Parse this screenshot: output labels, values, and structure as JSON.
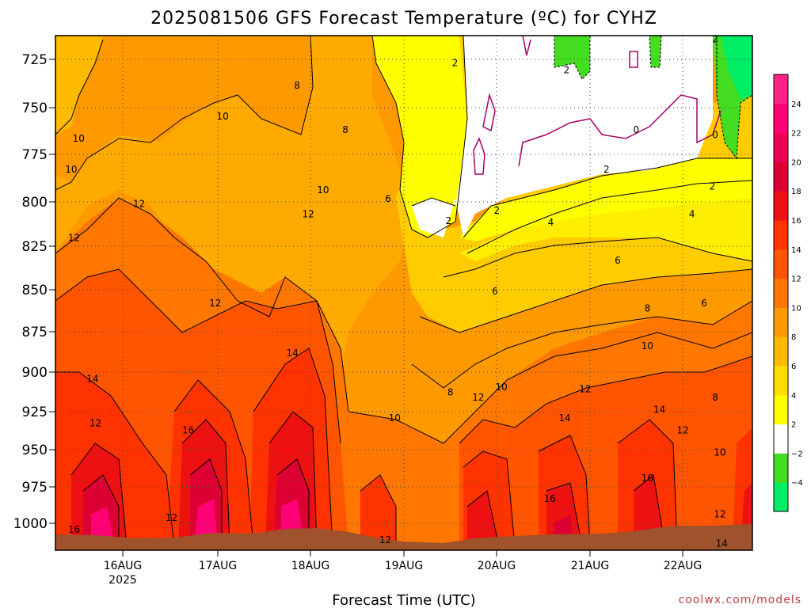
{
  "title": "2025081506 GFS Forecast Temperature (ºC) for CYHZ",
  "xlabel": "Forecast Time (UTC)",
  "credit": "coolwx.com/models",
  "chart_data": {
    "type": "heatmap",
    "title": "2025081506 GFS Forecast Temperature (ºC) for CYHZ",
    "xlabel": "Forecast Time (UTC)",
    "ylabel": "",
    "y_axis": {
      "ticks": [
        725,
        750,
        775,
        800,
        825,
        850,
        875,
        900,
        925,
        950,
        975,
        1000
      ],
      "inverted": true,
      "range": [
        712,
        1012
      ]
    },
    "x_axis": {
      "ticks": [
        "16AUG",
        "17AUG",
        "18AUG",
        "19AUG",
        "20AUG",
        "21AUG",
        "22AUG"
      ],
      "sub_label": "2025",
      "range_days": [
        15.25,
        22.75
      ],
      "day_positions": [
        16,
        17,
        18,
        19,
        20,
        21,
        22
      ]
    },
    "grid": true,
    "colorbar": {
      "ticks": [
        "24",
        "22",
        "20",
        "18",
        "16",
        "14",
        "12",
        "10",
        "8",
        "6",
        "4",
        "2",
        "−2",
        "−4"
      ],
      "levels": [
        -6,
        -4,
        -2,
        2,
        4,
        6,
        8,
        10,
        12,
        14,
        16,
        18,
        20,
        22,
        24,
        26
      ],
      "colors": [
        "#00ee66",
        "#44dd22",
        "#ffffff",
        "#ffff00",
        "#ffdd00",
        "#ffbb00",
        "#ff9900",
        "#ff7700",
        "#ff5500",
        "#ff3300",
        "#ee1111",
        "#dd0033",
        "#ee0055",
        "#ff0077",
        "#ff2288"
      ]
    },
    "contour_labels": [
      {
        "text": "2",
        "x_day": 19.55,
        "p": 728
      },
      {
        "text": "2",
        "x_day": 20.75,
        "p": 732
      },
      {
        "text": "2",
        "x_day": 22.35,
        "p": 714
      },
      {
        "text": "8",
        "x_day": 17.85,
        "p": 741
      },
      {
        "text": "10",
        "x_day": 17.05,
        "p": 759
      },
      {
        "text": "10",
        "x_day": 15.5,
        "p": 772
      },
      {
        "text": "8",
        "x_day": 18.37,
        "p": 767
      },
      {
        "text": "0",
        "x_day": 21.5,
        "p": 767
      },
      {
        "text": "0",
        "x_day": 22.35,
        "p": 770
      },
      {
        "text": "10",
        "x_day": 15.42,
        "p": 790
      },
      {
        "text": "2",
        "x_day": 21.18,
        "p": 790
      },
      {
        "text": "10",
        "x_day": 18.13,
        "p": 802
      },
      {
        "text": "6",
        "x_day": 18.83,
        "p": 807
      },
      {
        "text": "12",
        "x_day": 16.15,
        "p": 810
      },
      {
        "text": "2",
        "x_day": 22.32,
        "p": 800
      },
      {
        "text": "2",
        "x_day": 20.0,
        "p": 814
      },
      {
        "text": "12",
        "x_day": 17.97,
        "p": 816
      },
      {
        "text": "4",
        "x_day": 20.58,
        "p": 821
      },
      {
        "text": "4",
        "x_day": 22.1,
        "p": 816
      },
      {
        "text": "2",
        "x_day": 19.48,
        "p": 820
      },
      {
        "text": "12",
        "x_day": 15.45,
        "p": 830
      },
      {
        "text": "6",
        "x_day": 21.3,
        "p": 843
      },
      {
        "text": "6",
        "x_day": 19.98,
        "p": 861
      },
      {
        "text": "12",
        "x_day": 16.97,
        "p": 868
      },
      {
        "text": "8",
        "x_day": 21.62,
        "p": 871
      },
      {
        "text": "6",
        "x_day": 22.23,
        "p": 868
      },
      {
        "text": "10",
        "x_day": 21.62,
        "p": 893
      },
      {
        "text": "14",
        "x_day": 17.8,
        "p": 897
      },
      {
        "text": "14",
        "x_day": 15.65,
        "p": 912
      },
      {
        "text": "10",
        "x_day": 20.05,
        "p": 917
      },
      {
        "text": "12",
        "x_day": 20.95,
        "p": 918
      },
      {
        "text": "8",
        "x_day": 19.5,
        "p": 920
      },
      {
        "text": "12",
        "x_day": 19.8,
        "p": 923
      },
      {
        "text": "8",
        "x_day": 22.35,
        "p": 923
      },
      {
        "text": "12",
        "x_day": 15.68,
        "p": 938
      },
      {
        "text": "14",
        "x_day": 21.75,
        "p": 930
      },
      {
        "text": "10",
        "x_day": 18.9,
        "p": 935
      },
      {
        "text": "14",
        "x_day": 20.73,
        "p": 935
      },
      {
        "text": "16",
        "x_day": 16.68,
        "p": 942
      },
      {
        "text": "12",
        "x_day": 22.0,
        "p": 942
      },
      {
        "text": "10",
        "x_day": 22.4,
        "p": 955
      },
      {
        "text": "16",
        "x_day": 21.62,
        "p": 970
      },
      {
        "text": "16",
        "x_day": 20.57,
        "p": 982
      },
      {
        "text": "12",
        "x_day": 16.5,
        "p": 993
      },
      {
        "text": "12",
        "x_day": 22.4,
        "p": 991
      },
      {
        "text": "16",
        "x_day": 15.45,
        "p": 1000
      },
      {
        "text": "12",
        "x_day": 18.8,
        "p": 1006
      },
      {
        "text": "14",
        "x_day": 22.42,
        "p": 1008
      }
    ]
  }
}
